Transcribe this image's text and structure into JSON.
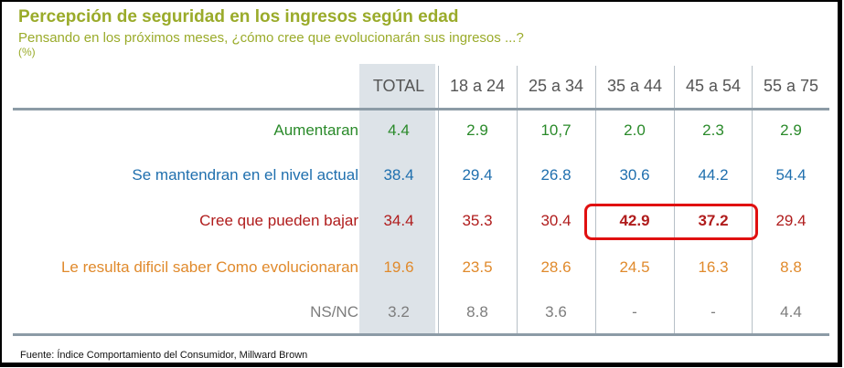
{
  "title": "Percepción de seguridad en los ingresos según edad",
  "subtitle": "Pensando en los próximos meses, ¿cómo cree que evolucionarán sus ingresos ...?",
  "unit": "(%)",
  "source": "Fuente: Índice Comportamiento del Consumidor, Millward Brown",
  "colors": {
    "title": "#9aab2a",
    "total_band": "#dde3e8",
    "highlight_border": "#e01010"
  },
  "highlight": {
    "row": "Cree que pueden bajar",
    "columns": [
      "35 a 44",
      "45 a 54"
    ]
  },
  "chart_data": {
    "type": "table",
    "columns": [
      "TOTAL",
      "18 a 24",
      "25 a 34",
      "35 a 44",
      "45 a 54",
      "55 a 75"
    ],
    "rows": [
      {
        "label": "Aumentaran",
        "color": "#2a8a2a",
        "values": [
          "4.4",
          "2.9",
          "10,7",
          "2.0",
          "2.3",
          "2.9"
        ]
      },
      {
        "label": "Se mantendran en el nivel actual",
        "color": "#1f6fae",
        "values": [
          "38.4",
          "29.4",
          "26.8",
          "30.6",
          "44.2",
          "54.4"
        ]
      },
      {
        "label": "Cree que pueden bajar",
        "color": "#b01c1c",
        "values": [
          "34.4",
          "35.3",
          "30.4",
          "42.9",
          "37.2",
          "29.4"
        ]
      },
      {
        "label": "Le resulta dificil saber Como evolucionaran",
        "color": "#e08a2c",
        "values": [
          "19.6",
          "23.5",
          "28.6",
          "24.5",
          "16.3",
          "8.8"
        ]
      },
      {
        "label": "NS/NC",
        "color": "#7d7d7d",
        "values": [
          "3.2",
          "8.8",
          "3.6",
          "-",
          "-",
          "4.4"
        ]
      }
    ]
  }
}
